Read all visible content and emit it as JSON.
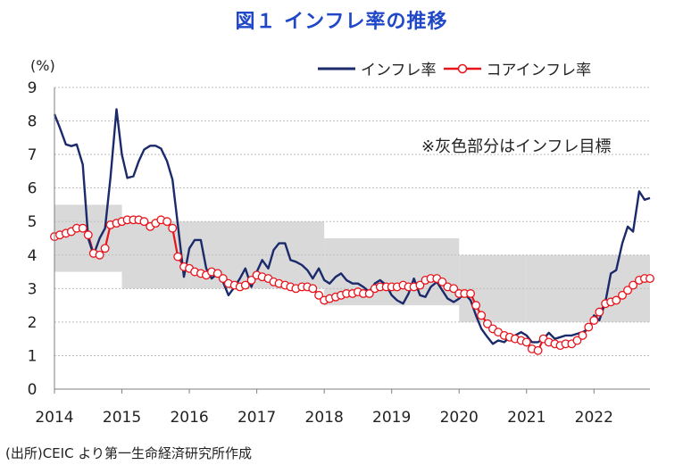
{
  "page": {
    "title": "図１ インフレ率の推移",
    "source": "(出所)CEIC より第一生命経済研究所作成"
  },
  "colors": {
    "title": "#1f47c8",
    "headline": "#1b2a6b",
    "core": "#e8141c",
    "target_band": "#d9d9d9"
  },
  "chart_data": {
    "type": "line",
    "title": "図１ インフレ率の推移",
    "ylabel": "(%)",
    "xlabel": "",
    "ylim": [
      0,
      9
    ],
    "xlim": [
      2014.0,
      2022.83
    ],
    "y_ticks": [
      "0",
      "1",
      "2",
      "3",
      "4",
      "5",
      "6",
      "7",
      "8",
      "9"
    ],
    "x_ticks": [
      "2014",
      "2015",
      "2016",
      "2017",
      "2018",
      "2019",
      "2020",
      "2021",
      "2022"
    ],
    "annotation": "※灰色部分はインフレ目標",
    "legend": [
      "インフレ率",
      "コアインフレ率"
    ],
    "legend_position": "top-right",
    "target_band": [
      {
        "start": 2014.0,
        "end": 2015.0,
        "low": 3.5,
        "high": 5.5
      },
      {
        "start": 2015.0,
        "end": 2016.0,
        "low": 3.0,
        "high": 5.0
      },
      {
        "start": 2016.0,
        "end": 2018.0,
        "low": 3.0,
        "high": 5.0
      },
      {
        "start": 2018.0,
        "end": 2020.0,
        "low": 2.5,
        "high": 4.5
      },
      {
        "start": 2020.0,
        "end": 2021.0,
        "low": 2.0,
        "high": 4.0
      },
      {
        "start": 2021.0,
        "end": 2022.83,
        "low": 2.0,
        "high": 4.0
      }
    ],
    "series": [
      {
        "name": "インフレ率",
        "x": [
          2014.0,
          2014.08,
          2014.17,
          2014.25,
          2014.33,
          2014.42,
          2014.5,
          2014.58,
          2014.67,
          2014.75,
          2014.83,
          2014.92,
          2015.0,
          2015.08,
          2015.17,
          2015.25,
          2015.33,
          2015.42,
          2015.5,
          2015.58,
          2015.67,
          2015.75,
          2015.83,
          2015.92,
          2016.0,
          2016.08,
          2016.17,
          2016.25,
          2016.33,
          2016.42,
          2016.5,
          2016.58,
          2016.67,
          2016.75,
          2016.83,
          2016.92,
          2017.0,
          2017.08,
          2017.17,
          2017.25,
          2017.33,
          2017.42,
          2017.5,
          2017.58,
          2017.67,
          2017.75,
          2017.83,
          2017.92,
          2018.0,
          2018.08,
          2018.17,
          2018.25,
          2018.33,
          2018.42,
          2018.5,
          2018.58,
          2018.67,
          2018.75,
          2018.83,
          2018.92,
          2019.0,
          2019.08,
          2019.17,
          2019.25,
          2019.33,
          2019.42,
          2019.5,
          2019.58,
          2019.67,
          2019.75,
          2019.83,
          2019.92,
          2020.0,
          2020.08,
          2020.17,
          2020.25,
          2020.33,
          2020.42,
          2020.5,
          2020.58,
          2020.67,
          2020.75,
          2020.83,
          2020.92,
          2021.0,
          2021.08,
          2021.17,
          2021.25,
          2021.33,
          2021.42,
          2021.5,
          2021.58,
          2021.67,
          2021.75,
          2021.83,
          2021.92,
          2022.0,
          2022.08,
          2022.17,
          2022.25,
          2022.33,
          2022.42,
          2022.5,
          2022.58,
          2022.67,
          2022.75,
          2022.83
        ],
        "values": [
          8.2,
          7.8,
          7.3,
          7.25,
          7.3,
          6.7,
          4.5,
          4.0,
          4.5,
          4.8,
          6.3,
          8.35,
          7.0,
          6.3,
          6.35,
          6.8,
          7.15,
          7.26,
          7.26,
          7.18,
          6.8,
          6.25,
          4.9,
          3.35,
          4.2,
          4.45,
          4.45,
          3.6,
          3.3,
          3.45,
          3.2,
          2.8,
          3.05,
          3.3,
          3.6,
          3.05,
          3.5,
          3.85,
          3.6,
          4.15,
          4.35,
          4.35,
          3.85,
          3.8,
          3.7,
          3.55,
          3.3,
          3.6,
          3.25,
          3.15,
          3.35,
          3.45,
          3.25,
          3.15,
          3.15,
          3.05,
          2.9,
          3.15,
          3.25,
          3.1,
          2.8,
          2.65,
          2.55,
          2.85,
          3.3,
          2.8,
          2.75,
          3.05,
          3.2,
          2.95,
          2.7,
          2.6,
          2.7,
          2.85,
          2.65,
          2.2,
          1.8,
          1.55,
          1.35,
          1.45,
          1.4,
          1.55,
          1.6,
          1.7,
          1.6,
          1.4,
          1.4,
          1.5,
          1.68,
          1.5,
          1.55,
          1.6,
          1.6,
          1.65,
          1.7,
          1.8,
          2.2,
          2.05,
          2.6,
          3.45,
          3.55,
          4.35,
          4.85,
          4.7,
          5.9,
          5.65,
          5.7
        ]
      },
      {
        "name": "コアインフレ率",
        "x": [
          2014.0,
          2014.08,
          2014.17,
          2014.25,
          2014.33,
          2014.42,
          2014.5,
          2014.58,
          2014.67,
          2014.75,
          2014.83,
          2014.92,
          2015.0,
          2015.08,
          2015.17,
          2015.25,
          2015.33,
          2015.42,
          2015.5,
          2015.58,
          2015.67,
          2015.75,
          2015.83,
          2015.92,
          2016.0,
          2016.08,
          2016.17,
          2016.25,
          2016.33,
          2016.42,
          2016.5,
          2016.58,
          2016.67,
          2016.75,
          2016.83,
          2016.92,
          2017.0,
          2017.08,
          2017.17,
          2017.25,
          2017.33,
          2017.42,
          2017.5,
          2017.58,
          2017.67,
          2017.75,
          2017.83,
          2017.92,
          2018.0,
          2018.08,
          2018.17,
          2018.25,
          2018.33,
          2018.42,
          2018.5,
          2018.58,
          2018.67,
          2018.75,
          2018.83,
          2018.92,
          2019.0,
          2019.08,
          2019.17,
          2019.25,
          2019.33,
          2019.42,
          2019.5,
          2019.58,
          2019.67,
          2019.75,
          2019.83,
          2019.92,
          2020.0,
          2020.08,
          2020.17,
          2020.25,
          2020.33,
          2020.42,
          2020.5,
          2020.58,
          2020.67,
          2020.75,
          2020.83,
          2020.92,
          2021.0,
          2021.08,
          2021.17,
          2021.25,
          2021.33,
          2021.42,
          2021.5,
          2021.58,
          2021.67,
          2021.75,
          2021.83,
          2021.92,
          2022.0,
          2022.08,
          2022.17,
          2022.25,
          2022.33,
          2022.42,
          2022.5,
          2022.58,
          2022.67,
          2022.75,
          2022.83
        ],
        "values": [
          4.55,
          4.6,
          4.65,
          4.7,
          4.8,
          4.8,
          4.6,
          4.05,
          4.0,
          4.2,
          4.9,
          4.95,
          5.0,
          5.05,
          5.05,
          5.05,
          5.0,
          4.85,
          4.95,
          5.05,
          5.0,
          4.8,
          3.95,
          3.65,
          3.6,
          3.5,
          3.45,
          3.4,
          3.5,
          3.45,
          3.3,
          3.15,
          3.1,
          3.05,
          3.1,
          3.25,
          3.4,
          3.35,
          3.3,
          3.2,
          3.15,
          3.1,
          3.05,
          3.0,
          3.05,
          3.05,
          3.0,
          2.8,
          2.65,
          2.7,
          2.75,
          2.8,
          2.85,
          2.85,
          2.9,
          2.85,
          2.85,
          3.0,
          3.05,
          3.05,
          3.05,
          3.05,
          3.1,
          3.05,
          3.05,
          3.1,
          3.25,
          3.3,
          3.3,
          3.2,
          3.05,
          3.0,
          2.85,
          2.85,
          2.85,
          2.5,
          2.2,
          1.95,
          1.8,
          1.7,
          1.6,
          1.55,
          1.5,
          1.45,
          1.4,
          1.2,
          1.15,
          1.5,
          1.4,
          1.35,
          1.3,
          1.35,
          1.35,
          1.45,
          1.6,
          1.85,
          2.05,
          2.3,
          2.55,
          2.6,
          2.65,
          2.8,
          2.95,
          3.1,
          3.25,
          3.3,
          3.3
        ]
      }
    ]
  }
}
